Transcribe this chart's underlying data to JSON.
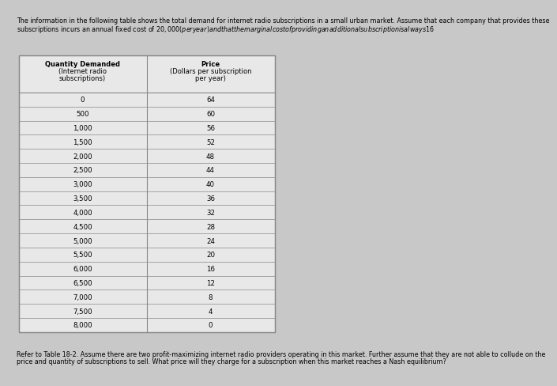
{
  "header_text_line1": "The information in the following table shows the total demand for internet radio subscriptions in a small urban market. Assume that each company that provides these",
  "header_text_line2": "subscriptions incurs an annual fixed cost of $20,000 (per year) and that the marginal cost of providing an additional subscription is always $16",
  "col1_header_line1": "Quantity Demanded",
  "col1_header_line2": "(Internet radio",
  "col1_header_line3": "subscriptions)",
  "col2_header_line1": "Price",
  "col2_header_line2": "(Dollars per subscription",
  "col2_header_line3": "per year)",
  "table_data": [
    [
      "0",
      "64"
    ],
    [
      "500",
      "60"
    ],
    [
      "1,000",
      "56"
    ],
    [
      "1,500",
      "52"
    ],
    [
      "2,000",
      "48"
    ],
    [
      "2,500",
      "44"
    ],
    [
      "3,000",
      "40"
    ],
    [
      "3,500",
      "36"
    ],
    [
      "4,000",
      "32"
    ],
    [
      "4,500",
      "28"
    ],
    [
      "5,000",
      "24"
    ],
    [
      "5,500",
      "20"
    ],
    [
      "6,000",
      "16"
    ],
    [
      "6,500",
      "12"
    ],
    [
      "7,000",
      "8"
    ],
    [
      "7,500",
      "4"
    ],
    [
      "8,000",
      "0"
    ]
  ],
  "footer_text_line1": "Refer to Table 18-2. Assume there are two profit-maximizing internet radio providers operating in this market. Further assume that they are not able to collude on the",
  "footer_text_line2": "price and quantity of subscriptions to sell. What price will they charge for a subscription when this market reaches a Nash equilibrium?",
  "bg_color": "#c8c8c8",
  "cell_bg_color": "#e8e8e8",
  "border_color": "#888888",
  "text_color": "#000000",
  "header_fontsize": 5.8,
  "body_fontsize": 6.2,
  "col_header_fontsize": 6.0,
  "footer_fontsize": 5.8
}
